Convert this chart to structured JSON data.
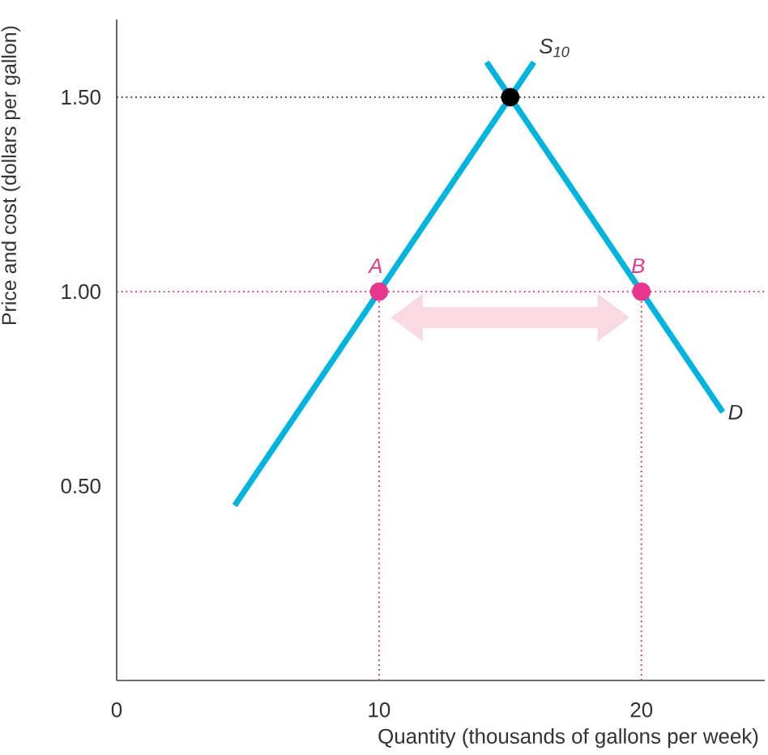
{
  "chart_data": {
    "type": "line",
    "xlabel": "Quantity (thousands of gallons per week)",
    "ylabel": "Price and cost (dollars per gallon)",
    "xlim": [
      0,
      24.7
    ],
    "ylim": [
      0,
      1.7
    ],
    "xticks": [
      0,
      10,
      20
    ],
    "yticks": [
      {
        "value": 0.5,
        "label": "0.50"
      },
      {
        "value": 1.0,
        "label": "1.00"
      },
      {
        "value": 1.5,
        "label": "1.50"
      }
    ],
    "grid": false,
    "series": [
      {
        "name": "S$_{10}$",
        "color": "#00b4e0",
        "x": [
          4.5,
          15.9
        ],
        "values": [
          0.45,
          1.59
        ]
      },
      {
        "name": "D",
        "color": "#00b4e0",
        "x": [
          14.1,
          23.1
        ],
        "values": [
          1.59,
          0.69
        ]
      },
      {
        "type": "line",
        "line_style": "dotted",
        "color": "#e8368f",
        "x": [
          10,
          10
        ],
        "values": [
          0,
          1.0
        ]
      },
      {
        "type": "line",
        "line_style": "dotted",
        "color": "#e8368f",
        "x": [
          20,
          20
        ],
        "values": [
          0,
          1.0
        ]
      },
      {
        "type": "scatter",
        "marker": "circle",
        "x": [
          10,
          15,
          20
        ],
        "values": [
          1.0,
          1.5,
          1.0
        ],
        "colors": [
          "#e8368f",
          "#000000",
          "#e8368f"
        ]
      }
    ],
    "ref_lines": [
      {
        "axis": "y",
        "value": 1.5,
        "color": "#444444",
        "line_style": "dotted"
      },
      {
        "axis": "y",
        "value": 1.0,
        "color": "#e8368f",
        "line_style": "dotted"
      }
    ],
    "annotations": [
      {
        "text": "A",
        "x": 10,
        "y": 1.0
      },
      {
        "text": "B",
        "x": 20,
        "y": 1.0
      }
    ]
  }
}
